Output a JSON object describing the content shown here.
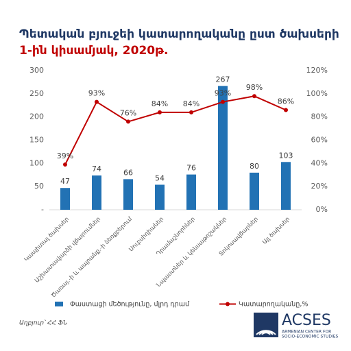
{
  "chart_data": {
    "type": "bar-line",
    "title": "Պետական բյուջեի կատարողականը ըստ ծախսերի",
    "subtitle": "1-ին կիսամյակ, 2020թ.",
    "categories": [
      "Կապիտալ ծախսեր",
      "Աշխատավարձի վճարումներ",
      "Ծառայ.-ի և ապրանք.-ի ձեռքբերում",
      "Սուբսիդիաներ",
      "Դրամաշնորհներ",
      "Նպաստներ և կենսաթոշակներ",
      "Տոկոսավճարներ",
      "Այլ ծախսեր"
    ],
    "series": [
      {
        "name": "Փաստացի մեծությունը, մլրդ դրամ",
        "type": "bar",
        "color": "#2272b4",
        "values": [
          47,
          74,
          66,
          54,
          76,
          267,
          80,
          103
        ]
      },
      {
        "name": "Կատարողականը,%",
        "type": "line",
        "axis": "y2",
        "color": "#c00000",
        "values": [
          39,
          93,
          76,
          84,
          84,
          93,
          98,
          86
        ],
        "value_labels": [
          "39%",
          "93%",
          "76%",
          "84%",
          "84%",
          "93%",
          "98%",
          "86%"
        ]
      }
    ],
    "ylim": [
      0,
      300
    ],
    "yticks": [
      {
        "value": 0,
        "label": "-"
      },
      50,
      100,
      150,
      200,
      250,
      300
    ],
    "y2lim": [
      0,
      120
    ],
    "y2ticks": [
      {
        "value": 0,
        "label": "0%"
      },
      {
        "value": 20,
        "label": "20%"
      },
      {
        "value": 40,
        "label": "40%"
      },
      {
        "value": 60,
        "label": "60%"
      },
      {
        "value": 80,
        "label": "80%"
      },
      {
        "value": 100,
        "label": "100%"
      },
      {
        "value": 120,
        "label": "120%"
      }
    ],
    "source": "Աղբյուր՝ ՀՀ ՖՆ"
  },
  "logo": {
    "name": "ACSES",
    "line1": "ARMENIAN CENTER FOR",
    "line2": "SOCIO-ECONOMIC STUDIES"
  }
}
